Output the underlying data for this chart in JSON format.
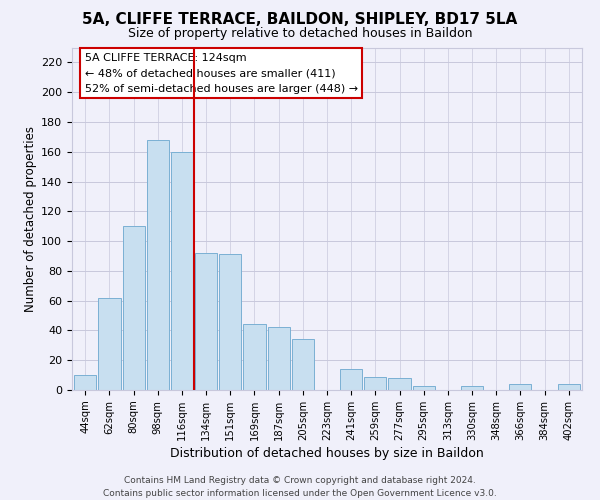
{
  "title": "5A, CLIFFE TERRACE, BAILDON, SHIPLEY, BD17 5LA",
  "subtitle": "Size of property relative to detached houses in Baildon",
  "xlabel": "Distribution of detached houses by size in Baildon",
  "ylabel": "Number of detached properties",
  "bar_labels": [
    "44sqm",
    "62sqm",
    "80sqm",
    "98sqm",
    "116sqm",
    "134sqm",
    "151sqm",
    "169sqm",
    "187sqm",
    "205sqm",
    "223sqm",
    "241sqm",
    "259sqm",
    "277sqm",
    "295sqm",
    "313sqm",
    "330sqm",
    "348sqm",
    "366sqm",
    "384sqm",
    "402sqm"
  ],
  "bar_heights": [
    10,
    62,
    110,
    168,
    160,
    92,
    91,
    44,
    42,
    34,
    0,
    14,
    9,
    8,
    3,
    0,
    3,
    0,
    4,
    0,
    4
  ],
  "bar_color": "#c8dff0",
  "bar_edgecolor": "#7ab0d4",
  "vline_color": "#cc0000",
  "ylim": [
    0,
    230
  ],
  "yticks": [
    0,
    20,
    40,
    60,
    80,
    100,
    120,
    140,
    160,
    180,
    200,
    220
  ],
  "annotation_title": "5A CLIFFE TERRACE: 124sqm",
  "annotation_line1": "← 48% of detached houses are smaller (411)",
  "annotation_line2": "52% of semi-detached houses are larger (448) →",
  "footer1": "Contains HM Land Registry data © Crown copyright and database right 2024.",
  "footer2": "Contains public sector information licensed under the Open Government Licence v3.0.",
  "bg_color": "#f0f0fa",
  "grid_color": "#c8c8dc"
}
